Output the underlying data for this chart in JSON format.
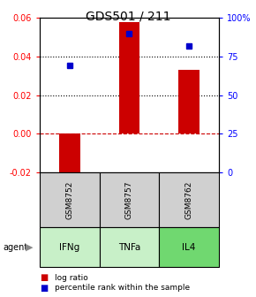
{
  "title": "GDS501 / 211",
  "categories": [
    "IFNg",
    "TNFa",
    "IL4"
  ],
  "gsm_labels": [
    "GSM8752",
    "GSM8757",
    "GSM8762"
  ],
  "log_ratios": [
    -0.022,
    0.058,
    0.033
  ],
  "percentile_ranks": [
    0.69,
    0.9,
    0.82
  ],
  "ylim_left": [
    -0.02,
    0.06
  ],
  "ylim_right": [
    0.0,
    1.0
  ],
  "bar_color": "#cc0000",
  "dot_color": "#0000cc",
  "hline_y_left": [
    0.02,
    0.04
  ],
  "zero_line_color": "#cc0000",
  "bg_color_gsm": "#d0d0d0",
  "agent_colors": [
    "#c8f0c8",
    "#c8f0c8",
    "#70d870"
  ],
  "bar_width": 0.35,
  "title_fontsize": 10,
  "tick_fontsize": 7,
  "legend_fontsize": 6.5,
  "yticks_left": [
    -0.02,
    0,
    0.02,
    0.04,
    0.06
  ],
  "yticks_right": [
    0.0,
    0.25,
    0.5,
    0.75,
    1.0
  ],
  "ytick_labels_right": [
    "0",
    "25",
    "50",
    "75",
    "100%"
  ]
}
